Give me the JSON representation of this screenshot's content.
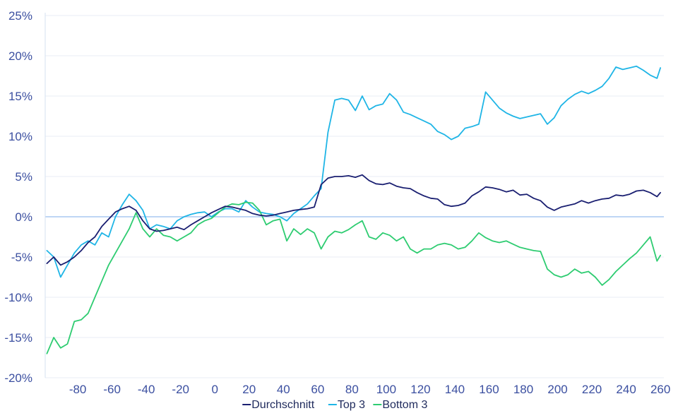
{
  "chart_data": {
    "type": "line",
    "title": "",
    "xlabel": "",
    "ylabel": "",
    "xlim": [
      -99,
      262
    ],
    "ylim": [
      -20,
      25
    ],
    "x_ticks": [
      -80,
      -60,
      -40,
      -20,
      0,
      20,
      40,
      60,
      80,
      100,
      120,
      140,
      160,
      180,
      200,
      220,
      240,
      260
    ],
    "y_ticks": [
      -20,
      -15,
      -10,
      -5,
      0,
      5,
      10,
      15,
      20,
      25
    ],
    "y_tick_format": "percent",
    "grid": "horizontal",
    "zero_line": true,
    "legend_position": "bottom",
    "x": [
      -98,
      -94,
      -90,
      -86,
      -82,
      -78,
      -74,
      -70,
      -66,
      -62,
      -58,
      -54,
      -50,
      -46,
      -42,
      -38,
      -34,
      -30,
      -26,
      -22,
      -18,
      -14,
      -10,
      -6,
      -2,
      2,
      6,
      10,
      14,
      18,
      22,
      26,
      30,
      34,
      38,
      42,
      46,
      50,
      54,
      58,
      62,
      66,
      70,
      74,
      78,
      82,
      86,
      90,
      94,
      98,
      102,
      106,
      110,
      114,
      118,
      122,
      126,
      130,
      134,
      138,
      142,
      146,
      150,
      154,
      158,
      162,
      166,
      170,
      174,
      178,
      182,
      186,
      190,
      194,
      198,
      202,
      206,
      210,
      214,
      218,
      222,
      226,
      230,
      234,
      238,
      242,
      246,
      250,
      254,
      258,
      260
    ],
    "series": [
      {
        "name": "Durchschnitt",
        "color": "#1a1f71",
        "values": [
          -5.8,
          -5.0,
          -6.0,
          -5.6,
          -5.0,
          -4.2,
          -3.2,
          -2.5,
          -1.2,
          -0.3,
          0.6,
          1.0,
          1.3,
          0.8,
          -0.5,
          -1.5,
          -1.8,
          -1.7,
          -1.5,
          -1.3,
          -1.6,
          -1.0,
          -0.5,
          0.0,
          0.5,
          0.9,
          1.3,
          1.2,
          1.0,
          0.8,
          0.4,
          0.2,
          0.1,
          0.2,
          0.4,
          0.6,
          0.8,
          0.9,
          1.0,
          1.2,
          4.0,
          4.8,
          5.0,
          5.0,
          5.1,
          4.9,
          5.2,
          4.5,
          4.1,
          4.0,
          4.2,
          3.8,
          3.6,
          3.5,
          3.0,
          2.6,
          2.3,
          2.2,
          1.5,
          1.3,
          1.4,
          1.7,
          2.6,
          3.1,
          3.7,
          3.6,
          3.4,
          3.1,
          3.3,
          2.7,
          2.8,
          2.3,
          2.0,
          1.2,
          0.8,
          1.2,
          1.4,
          1.6,
          2.0,
          1.7,
          2.0,
          2.2,
          2.3,
          2.7,
          2.6,
          2.8,
          3.2,
          3.3,
          3.0,
          2.5,
          3.0
        ]
      },
      {
        "name": "Top 3",
        "color": "#1fb5e6",
        "values": [
          -4.2,
          -5.0,
          -7.5,
          -6.0,
          -4.5,
          -3.5,
          -3.0,
          -3.5,
          -2.0,
          -2.5,
          0.0,
          1.5,
          2.8,
          2.0,
          0.8,
          -1.5,
          -1.0,
          -1.2,
          -1.5,
          -0.5,
          0.0,
          0.3,
          0.5,
          0.6,
          0.0,
          0.6,
          1.0,
          1.0,
          0.6,
          2.0,
          1.2,
          0.6,
          0.4,
          0.3,
          0.0,
          -0.5,
          0.4,
          1.0,
          1.6,
          2.6,
          3.5,
          10.5,
          14.5,
          14.7,
          14.5,
          13.2,
          15.0,
          13.3,
          13.8,
          14.0,
          15.3,
          14.5,
          13.0,
          12.7,
          12.3,
          11.9,
          11.5,
          10.6,
          10.2,
          9.6,
          10.0,
          11.0,
          11.2,
          11.5,
          15.5,
          14.5,
          13.5,
          12.9,
          12.5,
          12.2,
          12.4,
          12.6,
          12.8,
          11.5,
          12.3,
          13.8,
          14.6,
          15.2,
          15.6,
          15.3,
          15.7,
          16.2,
          17.2,
          18.6,
          18.3,
          18.5,
          18.7,
          18.2,
          17.6,
          17.2,
          18.5
        ]
      },
      {
        "name": "Bottom 3",
        "color": "#2ecc71",
        "values": [
          -17.0,
          -15.0,
          -16.3,
          -15.8,
          -13.0,
          -12.8,
          -12.0,
          -10.0,
          -8.0,
          -6.0,
          -4.5,
          -3.0,
          -1.5,
          0.5,
          -1.5,
          -2.5,
          -1.5,
          -2.3,
          -2.5,
          -3.0,
          -2.5,
          -2.0,
          -1.0,
          -0.5,
          -0.2,
          0.5,
          1.2,
          1.6,
          1.5,
          1.8,
          1.7,
          0.8,
          -1.0,
          -0.5,
          -0.3,
          -3.0,
          -1.5,
          -2.2,
          -1.5,
          -2.0,
          -4.0,
          -2.5,
          -1.8,
          -2.0,
          -1.6,
          -1.0,
          -0.5,
          -2.5,
          -2.8,
          -2.0,
          -2.3,
          -3.0,
          -2.5,
          -4.0,
          -4.5,
          -4.0,
          -4.0,
          -3.5,
          -3.3,
          -3.5,
          -4.0,
          -3.8,
          -3.0,
          -2.0,
          -2.6,
          -3.0,
          -3.2,
          -3.0,
          -3.4,
          -3.8,
          -4.0,
          -4.2,
          -4.3,
          -6.5,
          -7.2,
          -7.5,
          -7.2,
          -6.5,
          -7.0,
          -6.8,
          -7.5,
          -8.5,
          -7.8,
          -6.8,
          -6.0,
          -5.2,
          -4.5,
          -3.5,
          -2.5,
          -5.5,
          -4.8
        ]
      }
    ]
  }
}
